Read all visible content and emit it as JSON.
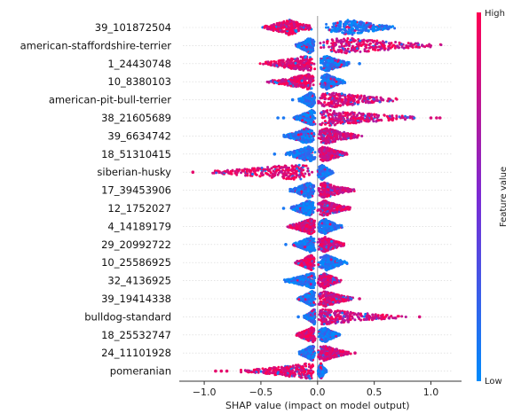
{
  "chart_data": {
    "type": "scatter",
    "subtype": "shap-beeswarm",
    "xlabel": "SHAP value (impact on model output)",
    "xlim": [
      -1.22,
      1.27
    ],
    "xticks": [
      -1.0,
      -0.5,
      0.0,
      0.5,
      1.0
    ],
    "xtick_labels": [
      "−1.0",
      "−0.5",
      "0.0",
      "0.5",
      "1.0"
    ],
    "grid": false,
    "colorbar": {
      "label": "Feature value",
      "high_label": "High",
      "low_label": "Low",
      "high_color": "#ff0052",
      "mid_color": "#7b2ad4",
      "low_color": "#008bfb"
    },
    "features": [
      {
        "name": "39_101872504",
        "neg_min": -0.5,
        "neg_max": -0.02,
        "neg_peak": -0.25,
        "pos_min": 0.02,
        "pos_max": 0.72,
        "pos_peak": 0.28,
        "neg_high": true,
        "outliers_pos": [],
        "outliers_neg": []
      },
      {
        "name": "american-staffordshire-terrier",
        "neg_min": -0.2,
        "neg_max": -0.02,
        "neg_peak": -0.07,
        "pos_min": 0.0,
        "pos_max": 1.15,
        "pos_peak": 0.25,
        "neg_high": false,
        "outliers_pos": [],
        "outliers_neg": []
      },
      {
        "name": "1_24430748",
        "neg_min": -0.52,
        "neg_max": -0.02,
        "neg_peak": -0.1,
        "pos_min": 0.02,
        "pos_max": 0.3,
        "pos_peak": 0.08,
        "neg_high": true,
        "outliers_pos": [
          0.37
        ],
        "outliers_neg": []
      },
      {
        "name": "10_8380103",
        "neg_min": -0.45,
        "neg_max": -0.02,
        "neg_peak": -0.08,
        "pos_min": 0.02,
        "pos_max": 0.25,
        "pos_peak": 0.08,
        "neg_high": true,
        "outliers_pos": [],
        "outliers_neg": []
      },
      {
        "name": "american-pit-bull-terrier",
        "neg_min": -0.17,
        "neg_max": -0.02,
        "neg_peak": -0.06,
        "pos_min": 0.0,
        "pos_max": 0.75,
        "pos_peak": 0.12,
        "neg_high": false,
        "outliers_pos": [],
        "outliers_neg": [
          -0.22
        ]
      },
      {
        "name": "38_21605689",
        "neg_min": -0.22,
        "neg_max": -0.02,
        "neg_peak": -0.05,
        "pos_min": 0.0,
        "pos_max": 0.95,
        "pos_peak": 0.1,
        "neg_high": false,
        "outliers_pos": [
          1.0,
          1.05,
          1.08
        ],
        "outliers_neg": [
          -0.3,
          -0.35
        ]
      },
      {
        "name": "39_6634742",
        "neg_min": -0.3,
        "neg_max": -0.02,
        "neg_peak": -0.1,
        "pos_min": 0.0,
        "pos_max": 0.4,
        "pos_peak": 0.08,
        "neg_high": false,
        "outliers_pos": [],
        "outliers_neg": []
      },
      {
        "name": "18_51310415",
        "neg_min": -0.3,
        "neg_max": -0.02,
        "neg_peak": -0.08,
        "pos_min": 0.0,
        "pos_max": 0.27,
        "pos_peak": 0.06,
        "neg_high": false,
        "outliers_pos": [],
        "outliers_neg": [
          -0.38
        ]
      },
      {
        "name": "siberian-husky",
        "neg_min": -1.05,
        "neg_max": -0.02,
        "neg_peak": -0.2,
        "pos_min": 0.0,
        "pos_max": 0.14,
        "pos_peak": 0.04,
        "neg_high": true,
        "outliers_pos": [],
        "outliers_neg": [
          -1.1
        ]
      },
      {
        "name": "17_39453906",
        "neg_min": -0.25,
        "neg_max": -0.02,
        "neg_peak": -0.08,
        "pos_min": 0.0,
        "pos_max": 0.33,
        "pos_peak": 0.06,
        "neg_high": false,
        "outliers_pos": [],
        "outliers_neg": []
      },
      {
        "name": "12_1752027",
        "neg_min": -0.25,
        "neg_max": -0.02,
        "neg_peak": -0.08,
        "pos_min": 0.0,
        "pos_max": 0.3,
        "pos_peak": 0.06,
        "neg_high": false,
        "outliers_pos": [],
        "outliers_neg": [
          -0.3
        ]
      },
      {
        "name": "4_14189179",
        "neg_min": -0.27,
        "neg_max": -0.02,
        "neg_peak": -0.06,
        "pos_min": 0.0,
        "pos_max": 0.22,
        "pos_peak": 0.06,
        "neg_high": true,
        "outliers_pos": [],
        "outliers_neg": []
      },
      {
        "name": "29_20992722",
        "neg_min": -0.23,
        "neg_max": -0.02,
        "neg_peak": -0.06,
        "pos_min": 0.0,
        "pos_max": 0.25,
        "pos_peak": 0.06,
        "neg_high": false,
        "outliers_pos": [],
        "outliers_neg": [
          -0.28
        ]
      },
      {
        "name": "10_25586925",
        "neg_min": -0.2,
        "neg_max": -0.02,
        "neg_peak": -0.06,
        "pos_min": 0.0,
        "pos_max": 0.27,
        "pos_peak": 0.08,
        "neg_high": true,
        "outliers_pos": [],
        "outliers_neg": []
      },
      {
        "name": "32_4136925",
        "neg_min": -0.3,
        "neg_max": -0.02,
        "neg_peak": -0.05,
        "pos_min": 0.0,
        "pos_max": 0.22,
        "pos_peak": 0.06,
        "neg_high": false,
        "outliers_pos": [],
        "outliers_neg": []
      },
      {
        "name": "39_19414338",
        "neg_min": -0.18,
        "neg_max": -0.02,
        "neg_peak": -0.05,
        "pos_min": 0.0,
        "pos_max": 0.33,
        "pos_peak": 0.07,
        "neg_high": false,
        "outliers_pos": [
          0.37
        ],
        "outliers_neg": []
      },
      {
        "name": "bulldog-standard",
        "neg_min": -0.12,
        "neg_max": -0.02,
        "neg_peak": -0.03,
        "pos_min": 0.0,
        "pos_max": 0.8,
        "pos_peak": 0.05,
        "neg_high": false,
        "outliers_pos": [
          0.9
        ],
        "outliers_neg": [
          -0.17
        ]
      },
      {
        "name": "18_25532747",
        "neg_min": -0.2,
        "neg_max": -0.02,
        "neg_peak": -0.05,
        "pos_min": 0.0,
        "pos_max": 0.2,
        "pos_peak": 0.06,
        "neg_high": true,
        "outliers_pos": [],
        "outliers_neg": []
      },
      {
        "name": "24_11101928",
        "neg_min": -0.18,
        "neg_max": -0.02,
        "neg_peak": -0.05,
        "pos_min": 0.0,
        "pos_max": 0.3,
        "pos_peak": 0.06,
        "neg_high": false,
        "outliers_pos": [
          0.33
        ],
        "outliers_neg": []
      },
      {
        "name": "pomeranian",
        "neg_min": -0.7,
        "neg_max": -0.02,
        "neg_peak": -0.08,
        "pos_min": 0.0,
        "pos_max": 0.08,
        "pos_peak": 0.03,
        "neg_high": true,
        "outliers_pos": [],
        "outliers_neg": [
          -0.8,
          -0.85,
          -0.9
        ]
      }
    ]
  }
}
